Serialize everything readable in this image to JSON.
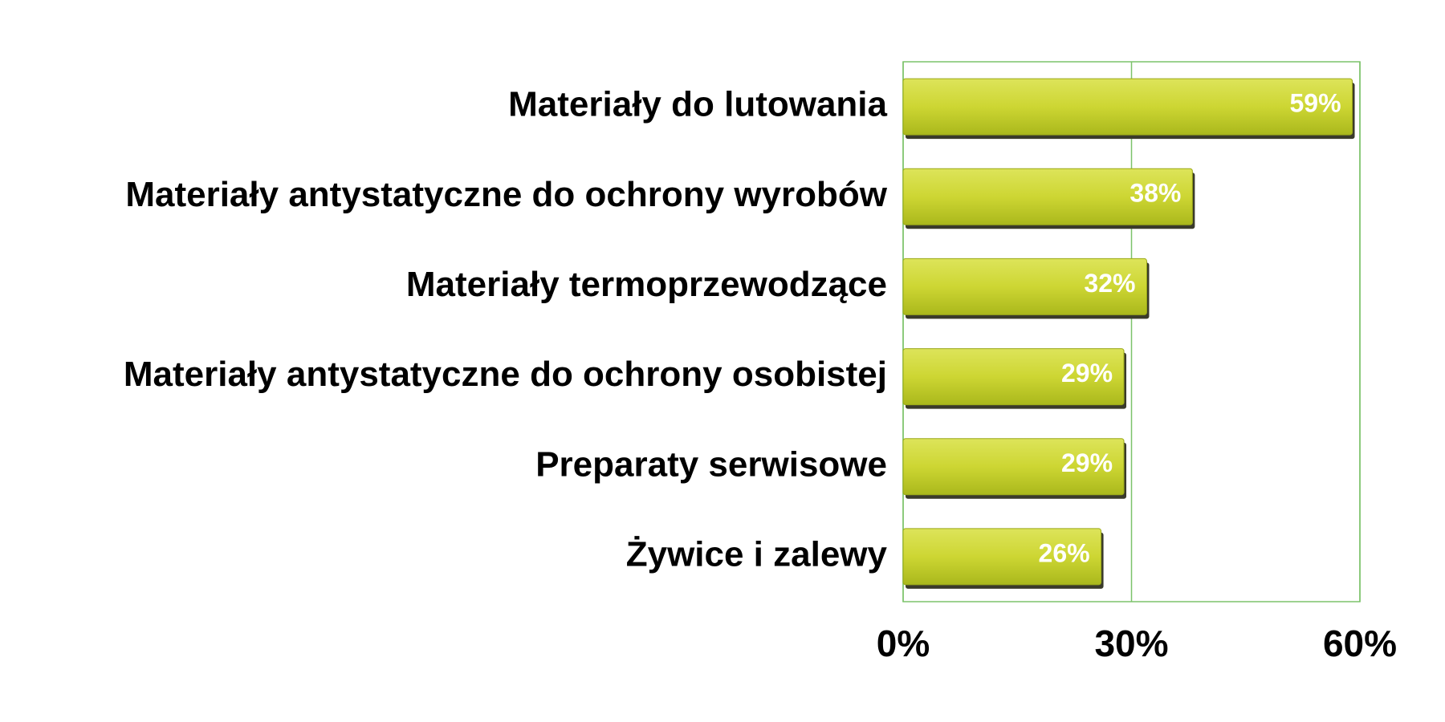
{
  "chart_data": {
    "type": "bar",
    "orientation": "horizontal",
    "categories": [
      "Materiały do lutowania",
      "Materiały antystatyczne do ochrony wyrobów",
      "Materiały termoprzewodzące",
      "Materiały antystatyczne do ochrony osobistej",
      "Preparaty serwisowe",
      "Żywice i zalewy"
    ],
    "values": [
      59,
      38,
      32,
      29,
      29,
      26
    ],
    "value_labels": [
      "59%",
      "38%",
      "32%",
      "29%",
      "29%",
      "26%"
    ],
    "color": "#c9d42c",
    "xlim": [
      0,
      60
    ],
    "xticks": [
      {
        "value": 0,
        "label": "0%"
      },
      {
        "value": 30,
        "label": "30%"
      },
      {
        "value": 60,
        "label": "60%"
      }
    ],
    "grid": true
  }
}
